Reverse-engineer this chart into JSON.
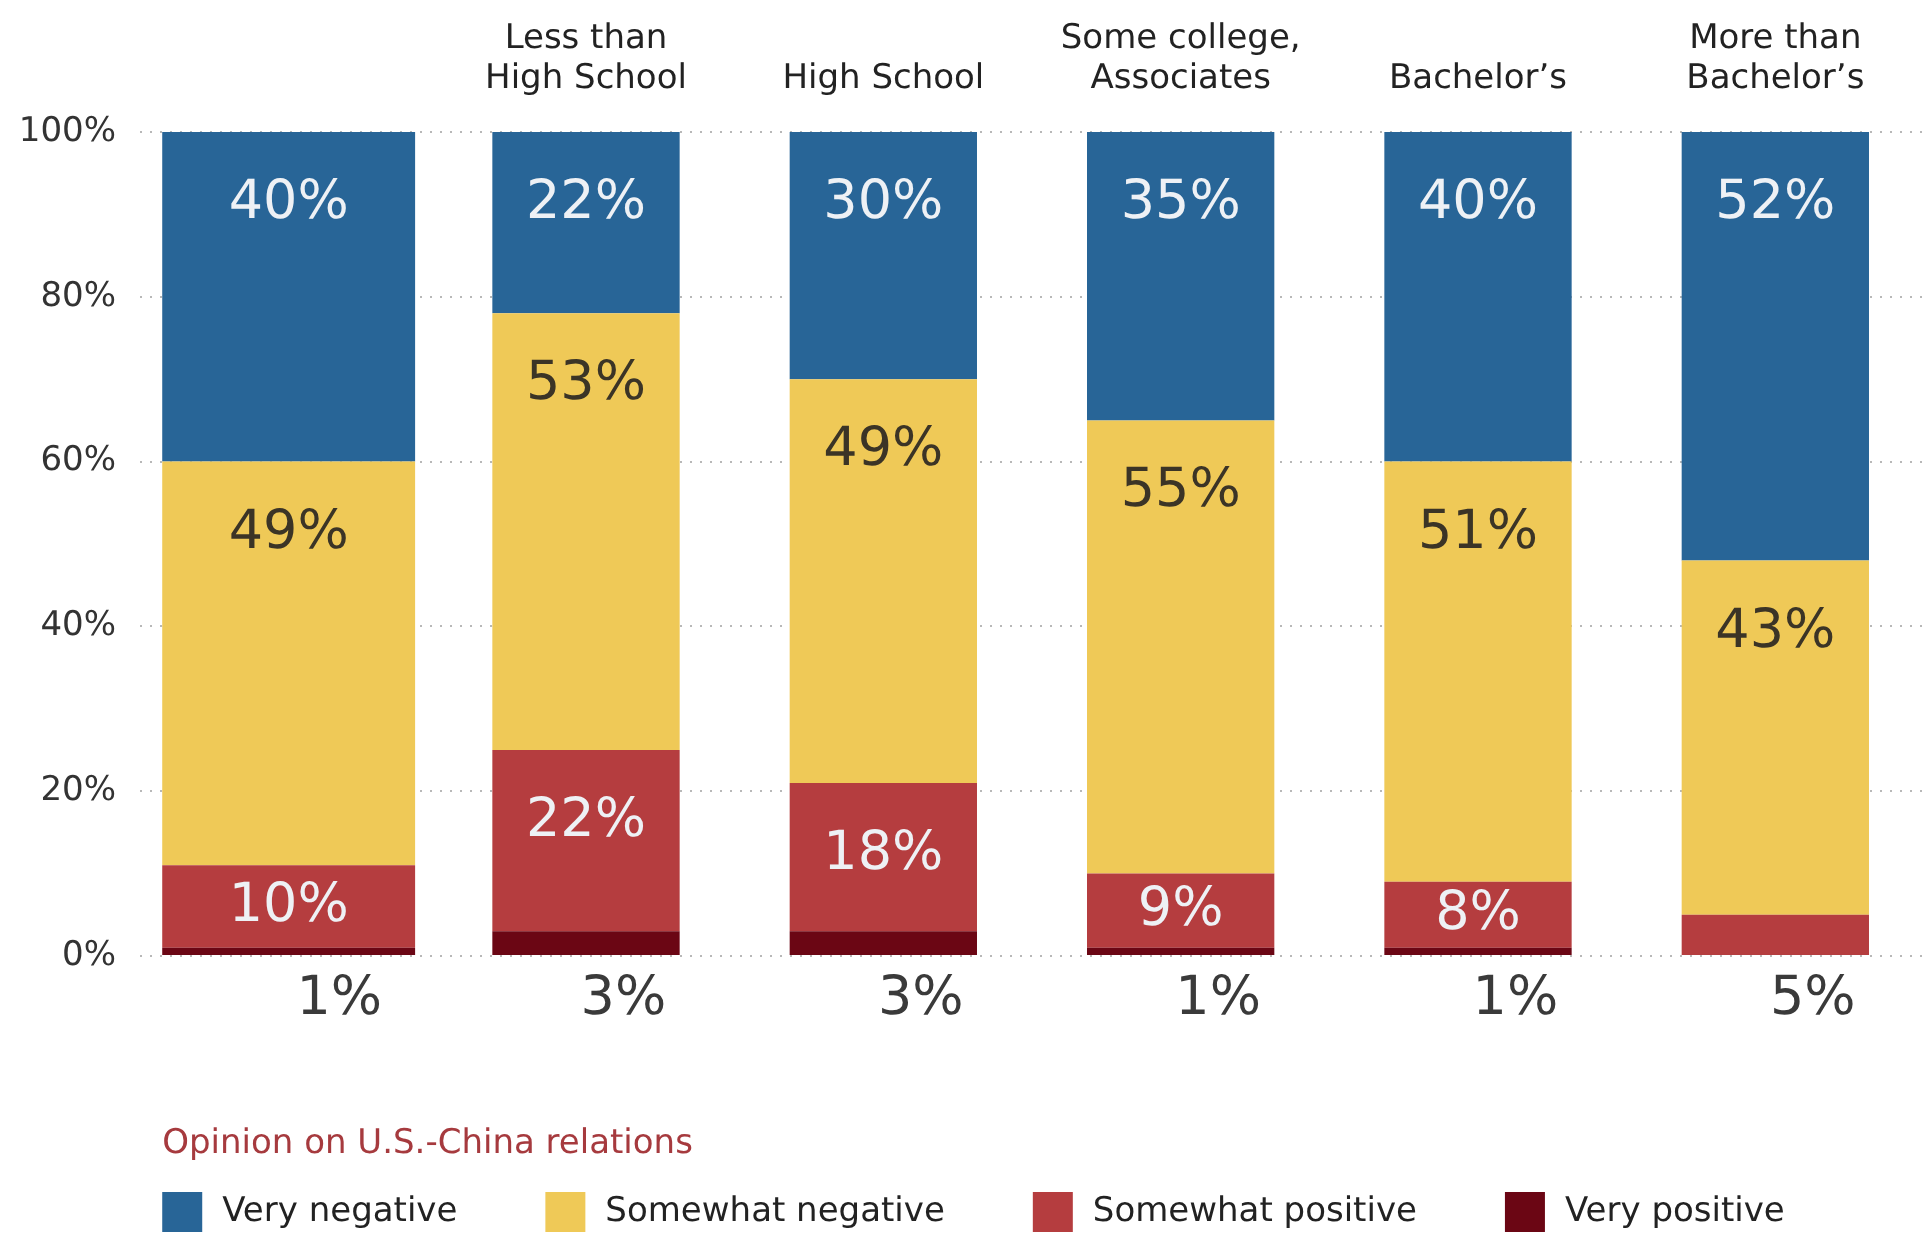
{
  "chart_data": {
    "type": "bar",
    "stacked": true,
    "categories": [
      null,
      "Less than High School",
      "High School",
      "Some college, Associates",
      "Bachelor’s",
      "More than Bachelor’s"
    ],
    "series": [
      {
        "name": "Very positive",
        "color": "#6b0614",
        "values": [
          1,
          3,
          3,
          1,
          1,
          0
        ],
        "value_labels": [
          "1%",
          "3%",
          "3%",
          "1%",
          "1%",
          null
        ]
      },
      {
        "name": "Somewhat positive",
        "color": "#b53d3f",
        "values": [
          10,
          22,
          18,
          9,
          8,
          5
        ],
        "value_labels": [
          "10%",
          "22%",
          "18%",
          "9%",
          "8%",
          "5%"
        ]
      },
      {
        "name": "Somewhat negative",
        "color": "#efc957",
        "values": [
          49,
          53,
          49,
          55,
          51,
          43
        ],
        "value_labels": [
          "49%",
          "53%",
          "49%",
          "55%",
          "51%",
          "43%"
        ]
      },
      {
        "name": "Very negative",
        "color": "#286597",
        "values": [
          40,
          22,
          30,
          35,
          40,
          52
        ],
        "value_labels": [
          "40%",
          "22%",
          "30%",
          "35%",
          "40%",
          "52%"
        ]
      }
    ],
    "ylim": [
      0,
      100
    ],
    "yticks": [
      {
        "value": 0,
        "label": "0%"
      },
      {
        "value": 20,
        "label": "20%"
      },
      {
        "value": 40,
        "label": "40%"
      },
      {
        "value": 60,
        "label": "60%"
      },
      {
        "value": 80,
        "label": "80%"
      },
      {
        "value": 100,
        "label": "100%"
      }
    ],
    "grid": "y",
    "legend": "bottom",
    "legend_title": "Opinion on U.S.-China relations"
  }
}
